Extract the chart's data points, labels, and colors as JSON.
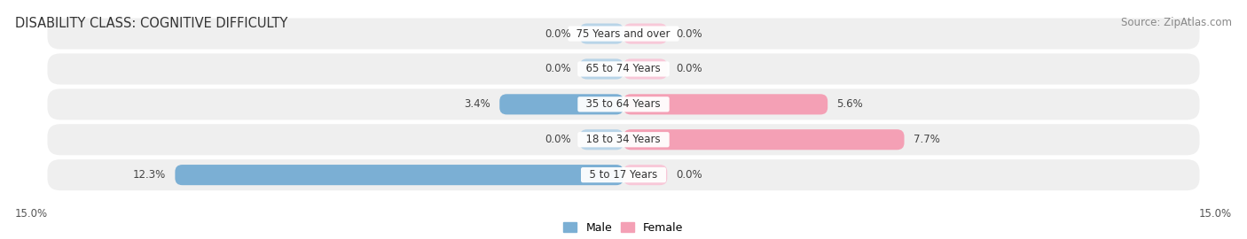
{
  "title": "DISABILITY CLASS: COGNITIVE DIFFICULTY",
  "source": "Source: ZipAtlas.com",
  "categories": [
    "5 to 17 Years",
    "18 to 34 Years",
    "35 to 64 Years",
    "65 to 74 Years",
    "75 Years and over"
  ],
  "male_values": [
    12.3,
    0.0,
    3.4,
    0.0,
    0.0
  ],
  "female_values": [
    0.0,
    7.7,
    5.6,
    0.0,
    0.0
  ],
  "male_color": "#7bafd4",
  "female_color": "#f4a0b5",
  "male_color_light": "#b8d4e8",
  "female_color_light": "#f8c8d8",
  "male_label": "Male",
  "female_label": "Female",
  "xlim": 15.0,
  "stub_size": 1.2,
  "x_tick_left": "15.0%",
  "x_tick_right": "15.0%",
  "row_bg_color": "#efefef",
  "row_bg_color_alt": "#e8e8e8",
  "title_fontsize": 10.5,
  "source_fontsize": 8.5,
  "label_fontsize": 8.5,
  "category_fontsize": 8.5
}
